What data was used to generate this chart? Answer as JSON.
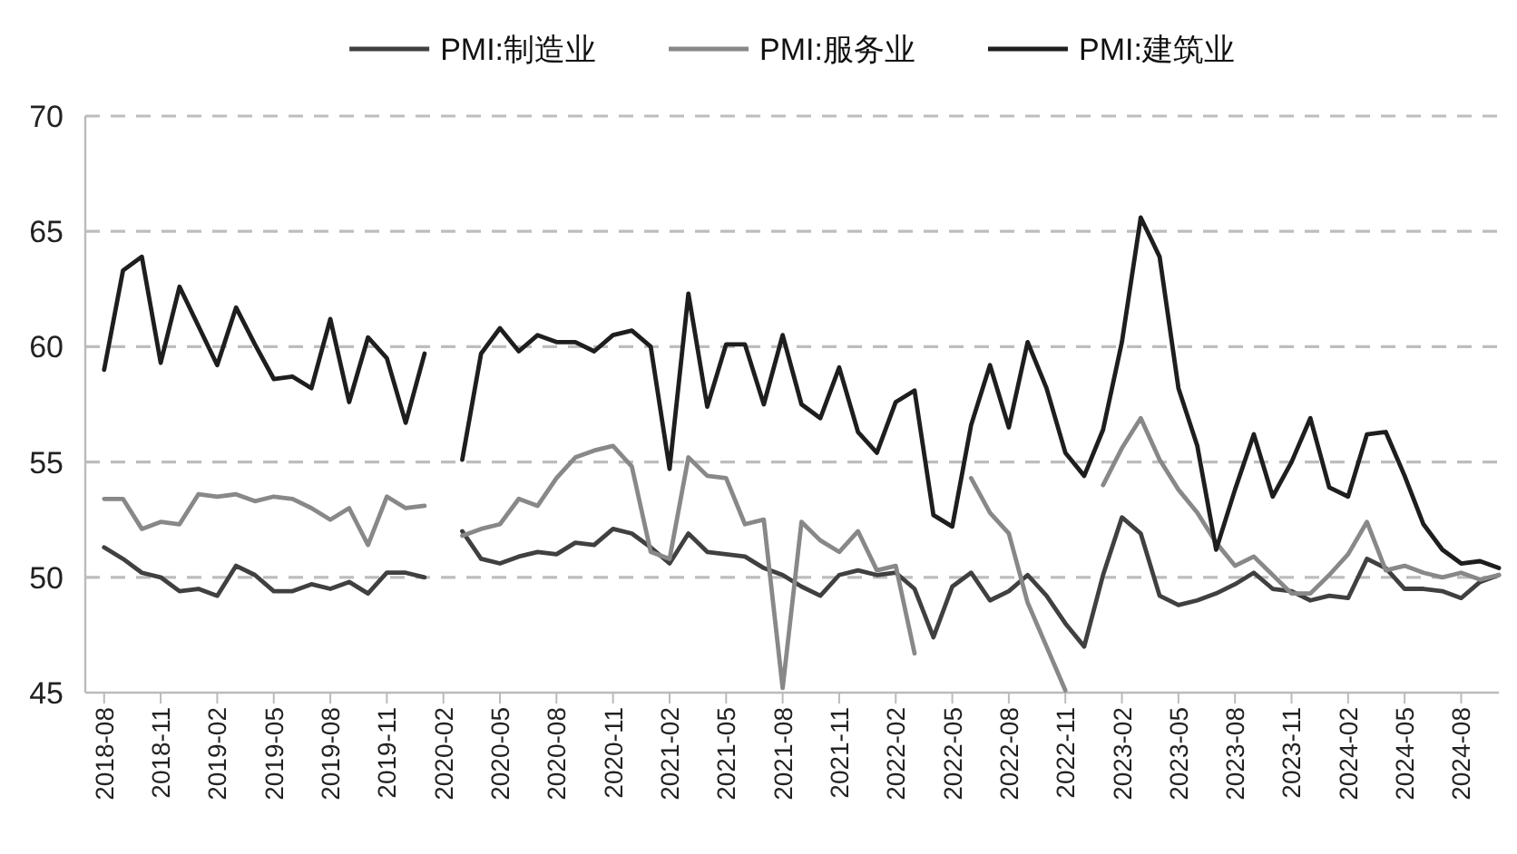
{
  "chart_data": {
    "type": "line",
    "x": [
      "2018-08",
      "2018-09",
      "2018-10",
      "2018-11",
      "2018-12",
      "2019-01",
      "2019-02",
      "2019-03",
      "2019-04",
      "2019-05",
      "2019-06",
      "2019-07",
      "2019-08",
      "2019-09",
      "2019-10",
      "2019-11",
      "2019-12",
      "2020-01",
      "2020-02",
      "2020-03",
      "2020-04",
      "2020-05",
      "2020-06",
      "2020-07",
      "2020-08",
      "2020-09",
      "2020-10",
      "2020-11",
      "2020-12",
      "2021-01",
      "2021-02",
      "2021-03",
      "2021-04",
      "2021-05",
      "2021-06",
      "2021-07",
      "2021-08",
      "2021-09",
      "2021-10",
      "2021-11",
      "2021-12",
      "2022-01",
      "2022-02",
      "2022-03",
      "2022-04",
      "2022-05",
      "2022-06",
      "2022-07",
      "2022-08",
      "2022-09",
      "2022-10",
      "2022-11",
      "2022-12",
      "2023-01",
      "2023-02",
      "2023-03",
      "2023-04",
      "2023-05",
      "2023-06",
      "2023-07",
      "2023-08",
      "2023-09",
      "2023-10",
      "2023-11",
      "2023-12",
      "2024-01",
      "2024-02",
      "2024-03",
      "2024-04",
      "2024-05",
      "2024-06",
      "2024-07",
      "2024-08",
      "2024-09",
      "2024-10"
    ],
    "series": [
      {
        "name": "PMI:制造业",
        "color": "#404040",
        "values": [
          51.3,
          50.8,
          50.2,
          50.0,
          49.4,
          49.5,
          49.2,
          50.5,
          50.1,
          49.4,
          49.4,
          49.7,
          49.5,
          49.8,
          49.3,
          50.2,
          50.2,
          50.0,
          null,
          52.0,
          50.8,
          50.6,
          50.9,
          51.1,
          51.0,
          51.5,
          51.4,
          52.1,
          51.9,
          51.3,
          50.6,
          51.9,
          51.1,
          51.0,
          50.9,
          50.4,
          50.1,
          49.6,
          49.2,
          50.1,
          50.3,
          50.1,
          50.2,
          49.5,
          47.4,
          49.6,
          50.2,
          49.0,
          49.4,
          50.1,
          49.2,
          48.0,
          47.0,
          50.1,
          52.6,
          51.9,
          49.2,
          48.8,
          49.0,
          49.3,
          49.7,
          50.2,
          49.5,
          49.4,
          49.0,
          49.2,
          49.1,
          50.8,
          50.4,
          49.5,
          49.5,
          49.4,
          49.1,
          49.8,
          50.1
        ]
      },
      {
        "name": "PMI:服务业",
        "color": "#888888",
        "values": [
          53.4,
          53.4,
          52.1,
          52.4,
          52.3,
          53.6,
          53.5,
          53.6,
          53.3,
          53.5,
          53.4,
          53.0,
          52.5,
          53.0,
          51.4,
          53.5,
          53.0,
          53.1,
          null,
          51.8,
          52.1,
          52.3,
          53.4,
          53.1,
          54.3,
          55.2,
          55.5,
          55.7,
          54.8,
          51.1,
          50.8,
          55.2,
          54.4,
          54.3,
          52.3,
          52.5,
          45.2,
          52.4,
          51.6,
          51.1,
          52.0,
          50.3,
          50.5,
          46.7,
          null,
          null,
          54.3,
          52.8,
          51.9,
          48.9,
          47.0,
          45.1,
          null,
          54.0,
          55.6,
          56.9,
          55.1,
          53.8,
          52.8,
          51.5,
          50.5,
          50.9,
          50.1,
          49.3,
          49.3,
          50.1,
          51.0,
          52.4,
          50.3,
          50.5,
          50.2,
          50.0,
          50.2,
          49.9,
          50.1
        ]
      },
      {
        "name": "PMI:建筑业",
        "color": "#1e1e1e",
        "values": [
          59.0,
          63.3,
          63.9,
          59.3,
          62.6,
          60.9,
          59.2,
          61.7,
          60.1,
          58.6,
          58.7,
          58.2,
          61.2,
          57.6,
          60.4,
          59.5,
          56.7,
          59.7,
          null,
          55.1,
          59.7,
          60.8,
          59.8,
          60.5,
          60.2,
          60.2,
          59.8,
          60.5,
          60.7,
          60.0,
          54.7,
          62.3,
          57.4,
          60.1,
          60.1,
          57.5,
          60.5,
          57.5,
          56.9,
          59.1,
          56.3,
          55.4,
          57.6,
          58.1,
          52.7,
          52.2,
          56.6,
          59.2,
          56.5,
          60.2,
          58.2,
          55.4,
          54.4,
          56.4,
          60.2,
          65.6,
          63.9,
          58.2,
          55.7,
          51.2,
          53.8,
          56.2,
          53.5,
          55.0,
          56.9,
          53.9,
          53.5,
          56.2,
          56.3,
          54.4,
          52.3,
          51.2,
          50.6,
          50.7,
          50.4
        ]
      }
    ],
    "xlim": [
      "2018-07",
      "2024-10"
    ],
    "xticks": [
      "2018-08",
      "2018-11",
      "2019-02",
      "2019-05",
      "2019-08",
      "2019-11",
      "2020-02",
      "2020-05",
      "2020-08",
      "2020-11",
      "2021-02",
      "2021-05",
      "2021-08",
      "2021-11",
      "2022-02",
      "2022-05",
      "2022-08",
      "2022-11",
      "2023-02",
      "2023-05",
      "2023-08",
      "2023-11",
      "2024-02",
      "2024-05",
      "2024-08"
    ],
    "ylim": [
      45,
      70
    ],
    "yticks": [
      45,
      50,
      55,
      60,
      65,
      70
    ],
    "grid": "y",
    "legend": "top",
    "line_style": "solid",
    "marker": "none"
  }
}
